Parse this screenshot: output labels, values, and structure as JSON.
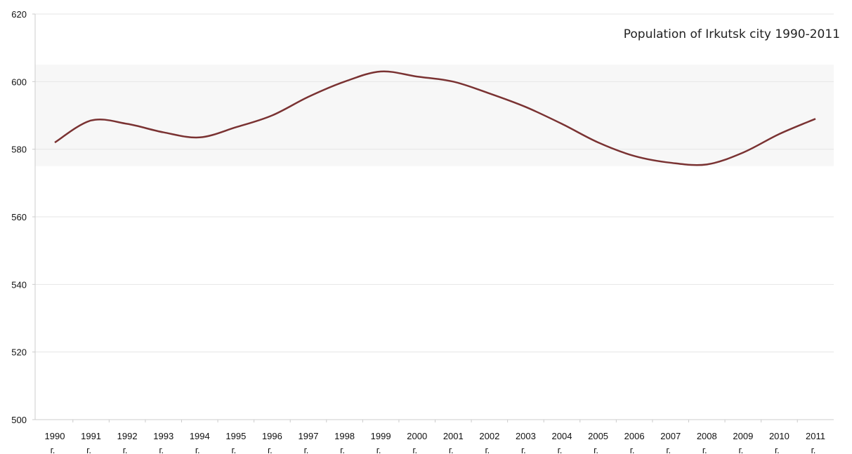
{
  "chart_data": {
    "type": "line",
    "title": "Population of Irkutsk city 1990-2011",
    "xlabel": "",
    "ylabel": "",
    "ylim": [
      500,
      620
    ],
    "yticks": [
      500,
      520,
      540,
      560,
      580,
      600,
      620
    ],
    "categories": [
      "1990",
      "1991",
      "1992",
      "1993",
      "1994",
      "1995",
      "1996",
      "1997",
      "1998",
      "1999",
      "2000",
      "2001",
      "2002",
      "2003",
      "2004",
      "2005",
      "2006",
      "2007",
      "2008",
      "2009",
      "2010",
      "2011"
    ],
    "category_suffix": "г.",
    "series": [
      {
        "name": "",
        "color": "#7a3232",
        "values": [
          582.0,
          588.5,
          587.5,
          585.0,
          583.5,
          586.5,
          590.0,
          595.5,
          600.0,
          603.0,
          601.5,
          600.0,
          596.5,
          592.5,
          587.5,
          582.0,
          578.0,
          576.0,
          575.5,
          579.0,
          584.5,
          589.0
        ]
      }
    ],
    "grid": true,
    "band": [
      575,
      605
    ],
    "colors": {
      "line": "#7a3232",
      "grid": "#e6e6e6",
      "band": "#f7f7f7",
      "axis": "#cccccc"
    }
  }
}
